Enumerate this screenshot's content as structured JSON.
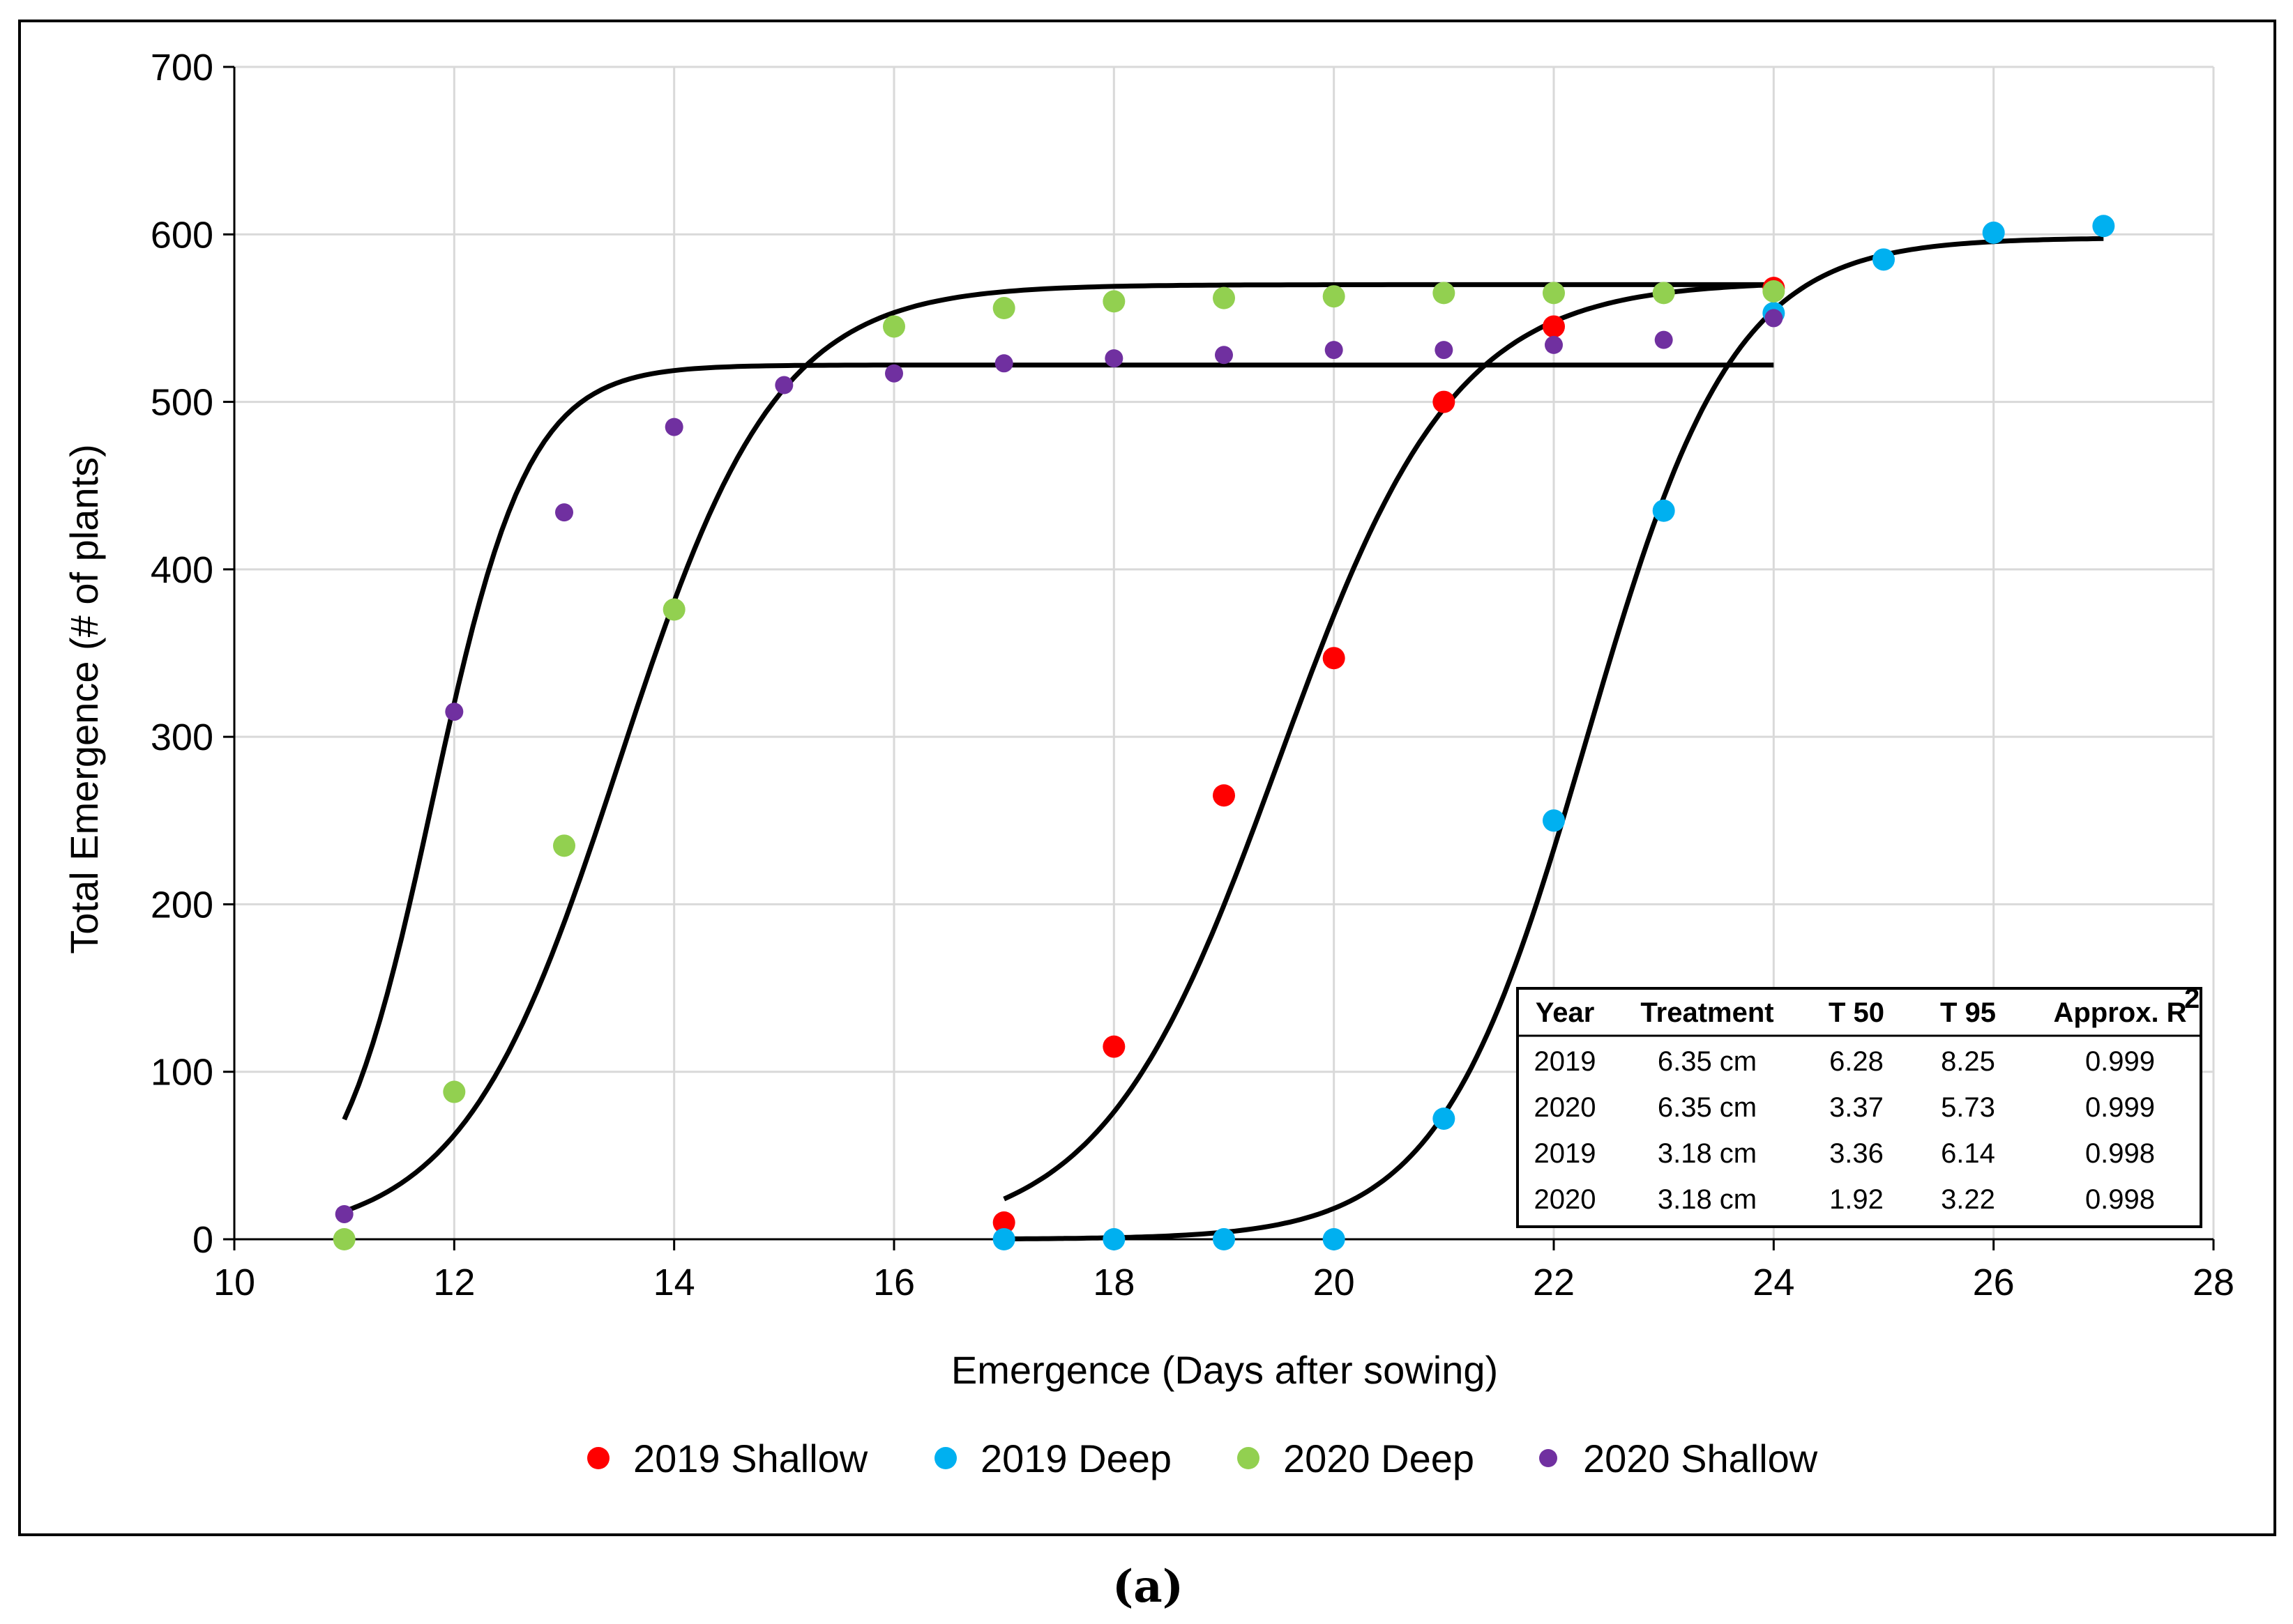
{
  "chart_data": {
    "type": "scatter",
    "xlabel": "Emergence (Days after sowing)",
    "ylabel": "Total Emergence (# of plants)",
    "xlim": [
      10,
      28
    ],
    "ylim": [
      0,
      700
    ],
    "xticks": [
      "10",
      "12",
      "14",
      "16",
      "18",
      "20",
      "22",
      "24",
      "26",
      "28"
    ],
    "yticks": [
      "0",
      "100",
      "200",
      "300",
      "400",
      "500",
      "600",
      "700"
    ],
    "grid": true,
    "legend_position": "bottom",
    "series": [
      {
        "name": "2019 Shallow",
        "color": "#ff0000",
        "points": [
          [
            17,
            10
          ],
          [
            18,
            115
          ],
          [
            19,
            265
          ],
          [
            20,
            347
          ],
          [
            21,
            500
          ],
          [
            22,
            545
          ],
          [
            24,
            568
          ]
        ]
      },
      {
        "name": "2019 Deep",
        "color": "#00b0f0",
        "points": [
          [
            17,
            0
          ],
          [
            18,
            0
          ],
          [
            19,
            0
          ],
          [
            20,
            0
          ],
          [
            21,
            72
          ],
          [
            22,
            250
          ],
          [
            23,
            435
          ],
          [
            24,
            553
          ],
          [
            25,
            585
          ],
          [
            26,
            601
          ],
          [
            27,
            605
          ]
        ]
      },
      {
        "name": "2020 Deep",
        "color": "#92d050",
        "points": [
          [
            11,
            0
          ],
          [
            12,
            88
          ],
          [
            13,
            235
          ],
          [
            14,
            376
          ],
          [
            16,
            545
          ],
          [
            17,
            556
          ],
          [
            18,
            560
          ],
          [
            19,
            562
          ],
          [
            20,
            563
          ],
          [
            21,
            565
          ],
          [
            22,
            565
          ],
          [
            23,
            565
          ],
          [
            24,
            566
          ]
        ]
      },
      {
        "name": "2020 Shallow",
        "color": "#7030a0",
        "points": [
          [
            11,
            15
          ],
          [
            12,
            315
          ],
          [
            13,
            434
          ],
          [
            14,
            485
          ],
          [
            15,
            510
          ],
          [
            16,
            517
          ],
          [
            17,
            523
          ],
          [
            18,
            526
          ],
          [
            19,
            528
          ],
          [
            20,
            531
          ],
          [
            21,
            531
          ],
          [
            22,
            534
          ],
          [
            23,
            537
          ],
          [
            24,
            550
          ]
        ]
      }
    ],
    "fitted_curves": [
      {
        "label": "2020 Shallow fit",
        "x_range": [
          11,
          24
        ],
        "max": 522,
        "t50": 11.8,
        "rate": 2.3
      },
      {
        "label": "2020 Deep fit",
        "x_range": [
          11,
          24
        ],
        "max": 570,
        "t50": 13.5,
        "rate": 1.4
      },
      {
        "label": "2019 Shallow fit",
        "x_range": [
          17,
          24
        ],
        "max": 572,
        "t50": 19.5,
        "rate": 1.25
      },
      {
        "label": "2019 Deep fit",
        "x_range": [
          17,
          27
        ],
        "max": 598,
        "t50": 22.3,
        "rate": 1.5
      }
    ],
    "table": {
      "headers": [
        "Year",
        "Treatment",
        "T 50",
        "T 95",
        "Approx. R"
      ],
      "header_superscript": "2",
      "rows": [
        [
          "2019",
          "6.35 cm",
          "6.28",
          "8.25",
          "0.999"
        ],
        [
          "2020",
          "6.35 cm",
          "3.37",
          "5.73",
          "0.999"
        ],
        [
          "2019",
          "3.18 cm",
          "3.36",
          "6.14",
          "0.998"
        ],
        [
          "2020",
          "3.18 cm",
          "1.92",
          "3.22",
          "0.998"
        ]
      ]
    },
    "subfigure_label": "(a)"
  }
}
